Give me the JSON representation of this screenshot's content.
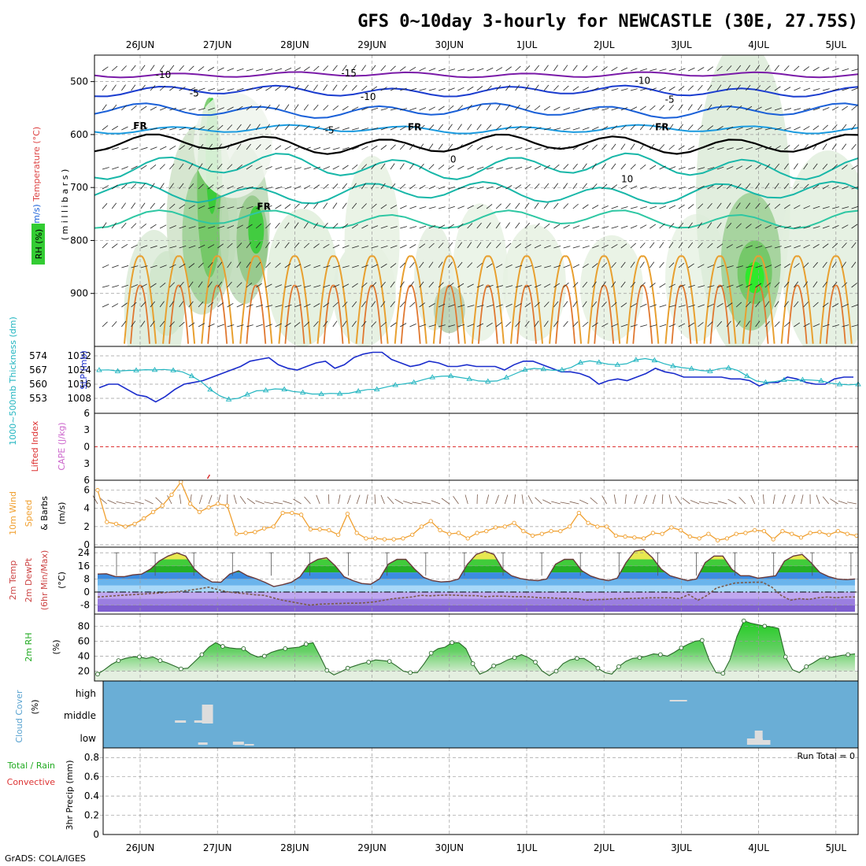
{
  "title": "GFS 0~10day 3-hourly for NEWCASTLE (30E, 27.75S)",
  "credit": "GrADS: COLA/IGES",
  "colors": {
    "temp": "#0f0f0f",
    "slp": "#1a2ccc",
    "thickness": "#22b5c0",
    "wind": "#f0a030",
    "rh_fill": "#33cc33",
    "cloud_bg": "#6aaed6",
    "cloud_fill": "#dddddd",
    "tmax_fill": "#44bb44",
    "dew": "#7a5a4a",
    "cape": "#cc66cc",
    "li": "#dd3333"
  },
  "chart_data": [
    {
      "id": "upper-air",
      "type": "heatmap",
      "title": "",
      "ylabel_parts": [
        "RH (%)",
        "Temperature (°C)",
        "Wind (m/s)"
      ],
      "yunit": "( m i l l i b a r s )",
      "ytick_labels": [
        "500",
        "600",
        "700",
        "800",
        "900"
      ],
      "ylim": [
        1000,
        450
      ],
      "contour_labels": [
        {
          "text": "-10",
          "x": 0.3,
          "p": 493,
          "color": "#1a3ccf"
        },
        {
          "text": "-15",
          "x": 2.7,
          "p": 490,
          "color": "#7a1aa8"
        },
        {
          "text": "-5",
          "x": 0.7,
          "p": 528,
          "color": "#1a60d8"
        },
        {
          "text": "-10",
          "x": 2.95,
          "p": 535,
          "color": "#1a3ccf"
        },
        {
          "text": "-10",
          "x": 6.5,
          "p": 504,
          "color": "#1a3ccf"
        },
        {
          "text": "-5",
          "x": 6.85,
          "p": 540,
          "color": "#1a60d8"
        },
        {
          "text": "-5",
          "x": 2.45,
          "p": 598,
          "color": "#1a60d8"
        },
        {
          "text": "FR",
          "x": 0.0,
          "p": 590,
          "color": "#000000"
        },
        {
          "text": "FR",
          "x": 3.55,
          "p": 592,
          "color": "#000000"
        },
        {
          "text": "FR",
          "x": 6.75,
          "p": 592,
          "color": "#000000"
        },
        {
          "text": "FR",
          "x": 1.6,
          "p": 742,
          "color": "#000000"
        },
        {
          "text": "0",
          "x": 4.05,
          "p": 653,
          "color": "#18b7a8"
        },
        {
          "text": "10",
          "x": 6.3,
          "p": 690,
          "color": "#18b7a8"
        }
      ],
      "rh_ramp": [
        "RH (%)"
      ]
    },
    {
      "id": "pressure",
      "type": "line",
      "ylabel_left": "1000~500mb Thickness (dm)",
      "ylabel_right": "SLP (mb)",
      "left_ticks": [
        "574",
        "567",
        "560",
        "553"
      ],
      "right_ticks": [
        "1032",
        "1024",
        "1016",
        "1008"
      ],
      "ylim_slp": [
        1002,
        1036
      ],
      "series": [
        {
          "name": "SLP (mb)",
          "values": [
            1014,
            1016,
            1016,
            1013,
            1010,
            1009,
            1006,
            1009,
            1013,
            1016,
            1017,
            1018,
            1020,
            1022,
            1024,
            1026,
            1029,
            1030,
            1031,
            1027,
            1025,
            1024,
            1026,
            1028,
            1029,
            1025,
            1027,
            1031,
            1033,
            1034,
            1034,
            1030,
            1028,
            1026,
            1027,
            1029,
            1028,
            1026,
            1026,
            1027,
            1026,
            1026,
            1026,
            1024,
            1027,
            1029,
            1029,
            1027,
            1025,
            1023,
            1023,
            1022,
            1020,
            1016,
            1018,
            1019,
            1018,
            1020,
            1022,
            1025,
            1023,
            1022,
            1020,
            1020,
            1020,
            1020,
            1020,
            1019,
            1019,
            1018,
            1015,
            1017,
            1017,
            1020,
            1019,
            1017,
            1016,
            1016,
            1019,
            1020,
            1020
          ]
        },
        {
          "name": "1000~500mb Thickness (dm)",
          "values": [
            566.5,
            566.6,
            566.0,
            566.3,
            566.4,
            566.7,
            566.6,
            566.8,
            566.4,
            565.6,
            563.6,
            560.9,
            557.0,
            554.0,
            552.2,
            552.7,
            554.6,
            556.4,
            556.6,
            557.3,
            557.1,
            556.0,
            555.6,
            554.8,
            554.8,
            555.1,
            555.0,
            555.2,
            556.2,
            557.0,
            557.1,
            558.2,
            559.2,
            559.8,
            560.5,
            561.8,
            563.0,
            563.5,
            563.6,
            562.9,
            562.2,
            561.2,
            561.0,
            561.2,
            562.9,
            564.8,
            566.7,
            567.3,
            567.0,
            566.4,
            566.6,
            567.8,
            570.2,
            571.0,
            570.3,
            569.4,
            569.1,
            569.6,
            571.5,
            572.1,
            571.3,
            569.7,
            568.5,
            567.7,
            567.2,
            566.3,
            566.0,
            567.2,
            567.6,
            566.3,
            563.6,
            561.2,
            560.5,
            560.9,
            561.7,
            561.3,
            561.8,
            561.6,
            561.3,
            560.1,
            559.6,
            559.3,
            559.6
          ]
        }
      ]
    },
    {
      "id": "stability",
      "type": "line",
      "ylabel_left": "Lifted Index",
      "ylabel_right": "CAPE (J/kg)",
      "ticks": [
        "6",
        "3",
        "0",
        "3",
        "6"
      ],
      "ylim": [
        -6,
        6
      ],
      "series": [
        {
          "name": "Lifted Index",
          "values": []
        }
      ]
    },
    {
      "id": "surface-wind",
      "type": "line",
      "ylabel": "10m Wind Speed & Barbs (m/s)",
      "ylabel_parts": [
        "10m Wind",
        "Speed",
        "& Barbs",
        "(m/s)"
      ],
      "ticks": [
        "6",
        "4",
        "2",
        "0"
      ],
      "ylim": [
        0,
        7
      ],
      "series": [
        {
          "name": "10m Wind Speed (m/s)",
          "values": [
            6.0,
            2.5,
            2.3,
            2.0,
            2.3,
            2.9,
            3.6,
            4.3,
            5.5,
            6.9,
            4.5,
            3.6,
            4.1,
            4.5,
            4.3,
            1.2,
            1.3,
            1.4,
            1.8,
            2.0,
            3.5,
            3.5,
            3.3,
            1.7,
            1.7,
            1.6,
            1.1,
            3.4,
            1.3,
            0.7,
            0.7,
            0.6,
            0.6,
            0.7,
            1.1,
            2.0,
            2.6,
            1.6,
            1.2,
            1.3,
            0.7,
            1.3,
            1.5,
            1.9,
            2.0,
            2.4,
            1.5,
            1.0,
            1.2,
            1.5,
            1.5,
            2.0,
            3.5,
            2.4,
            2.0,
            2.0,
            1.0,
            0.9,
            0.8,
            0.7,
            1.3,
            1.2,
            1.9,
            1.6,
            0.9,
            0.7,
            1.2,
            0.5,
            0.7,
            1.2,
            1.3,
            1.6,
            1.5,
            0.6,
            1.5,
            1.2,
            0.8,
            1.3,
            1.4,
            1.1,
            1.5,
            1.2,
            1.0
          ]
        }
      ]
    },
    {
      "id": "temperature",
      "type": "area",
      "ylabel_parts": [
        "2m Temp",
        "2m DewPt",
        "(6hr Min/Max)",
        "(°C)"
      ],
      "ticks": [
        "24",
        "16",
        "8",
        "0",
        "-8"
      ],
      "ylim": [
        -12,
        26
      ],
      "series": [
        {
          "name": "2m Temp",
          "values": [
            11,
            11.2,
            9.5,
            9.4,
            10.5,
            11,
            14,
            19,
            22,
            24,
            22,
            14,
            9.2,
            6.2,
            6.0,
            11,
            13,
            10,
            8.2,
            6.0,
            3.4,
            4.5,
            6.0,
            9.5,
            17,
            20,
            21,
            16,
            9.3,
            7.0,
            5.2,
            4.8,
            8.0,
            17,
            20,
            20,
            14,
            9.0,
            7.0,
            6.2,
            6.5,
            8.0,
            17,
            23,
            25,
            23,
            14,
            10,
            8.3,
            7.4,
            7.0,
            8.0,
            17,
            20,
            20,
            13,
            9.8,
            8.0,
            7.0,
            8.5,
            18,
            25,
            26,
            21,
            14,
            10,
            8.4,
            7.0,
            8.0,
            18,
            22,
            22,
            14,
            10,
            10,
            8.5,
            9.2,
            10,
            19,
            22,
            23,
            18,
            12,
            9.5,
            8.0,
            7.6,
            8.0
          ]
        },
        {
          "name": "2m DewPt",
          "values": [
            -3,
            -2.6,
            -2.2,
            -1.8,
            -1.5,
            -1.2,
            -0.8,
            -0.4,
            0.0,
            0.5,
            1.2,
            2.0,
            3.0,
            1.5,
            0.2,
            -0.5,
            -1,
            -1.6,
            -2,
            -3.5,
            -5,
            -6,
            -7,
            -8,
            -7.4,
            -7.2,
            -7,
            -6.8,
            -6.8,
            -6.5,
            -6,
            -5,
            -4,
            -3.5,
            -3,
            -2,
            -2.3,
            -2,
            -1.8,
            -2.0,
            -2.2,
            -2.2,
            -2.8,
            -2.5,
            -2.5,
            -2.8,
            -2.8,
            -3,
            -3.5,
            -3.5,
            -3.8,
            -3.8,
            -4.0,
            -5.0,
            -4.5,
            -4.5,
            -4.0,
            -4.0,
            -3.8,
            -3.7,
            -3.5,
            -3.5,
            -3.5,
            -4.0,
            -1.5,
            -5.0,
            -2.0,
            2.5,
            4.0,
            5.5,
            5.8,
            6.0,
            6.0,
            3.0,
            -2.0,
            -5.0,
            -4.0,
            -4.5,
            -3.5,
            -3.0,
            -3.5,
            -3.0,
            -3.0
          ]
        }
      ]
    },
    {
      "id": "humidity",
      "type": "area",
      "ylabel": "2m RH",
      "yunit": "(%)",
      "ticks": [
        "80",
        "60",
        "40",
        "20"
      ],
      "ylim": [
        10,
        95
      ],
      "series": [
        {
          "name": "2m RH (%)",
          "values": [
            16,
            22,
            29,
            34,
            37,
            39,
            39,
            37,
            39,
            34,
            31,
            27,
            23,
            24,
            33,
            42,
            52,
            58,
            53,
            51,
            50,
            50,
            43,
            39,
            40,
            45,
            48,
            50,
            51,
            52,
            56,
            58,
            40,
            21,
            15,
            19,
            24,
            27,
            30,
            32,
            35,
            34,
            33,
            27,
            20,
            18,
            18,
            30,
            44,
            50,
            52,
            58,
            58,
            50,
            30,
            16,
            20,
            27,
            30,
            35,
            38,
            42,
            38,
            32,
            20,
            14,
            20,
            30,
            35,
            37,
            37,
            31,
            24,
            18,
            16,
            26,
            33,
            37,
            38,
            40,
            43,
            42,
            40,
            45,
            51,
            56,
            60,
            61,
            35,
            18,
            17,
            35,
            66,
            87,
            84,
            82,
            80,
            79,
            77,
            39,
            22,
            18,
            26,
            31,
            37,
            38,
            39,
            41,
            42,
            43
          ]
        }
      ]
    },
    {
      "id": "cloud-cover",
      "type": "bar",
      "ylabel": "Cloud Cover",
      "yunit": "(%)",
      "ticks": [
        "high",
        "middle",
        "low"
      ]
    },
    {
      "id": "precip",
      "type": "bar",
      "ylabel_left": "Total / Rain",
      "ylabel_left2": "Convective",
      "ylabel_right": "3hr Precip (mm)",
      "ticks": [
        "0.8",
        "0.6",
        "0.4",
        "0.2",
        "0"
      ],
      "ylim": [
        0,
        0.9
      ],
      "run_total": "Run Total = 0",
      "values": []
    }
  ],
  "x_axis": {
    "labels": [
      "26JUN",
      "27JUN",
      "28JUN",
      "29JUN",
      "30JUN",
      "1JUL",
      "2JUL",
      "3JUL",
      "4JUL",
      "5JUL"
    ]
  },
  "icons": [
    "wind-barb-icon",
    "contour-line-icon"
  ]
}
